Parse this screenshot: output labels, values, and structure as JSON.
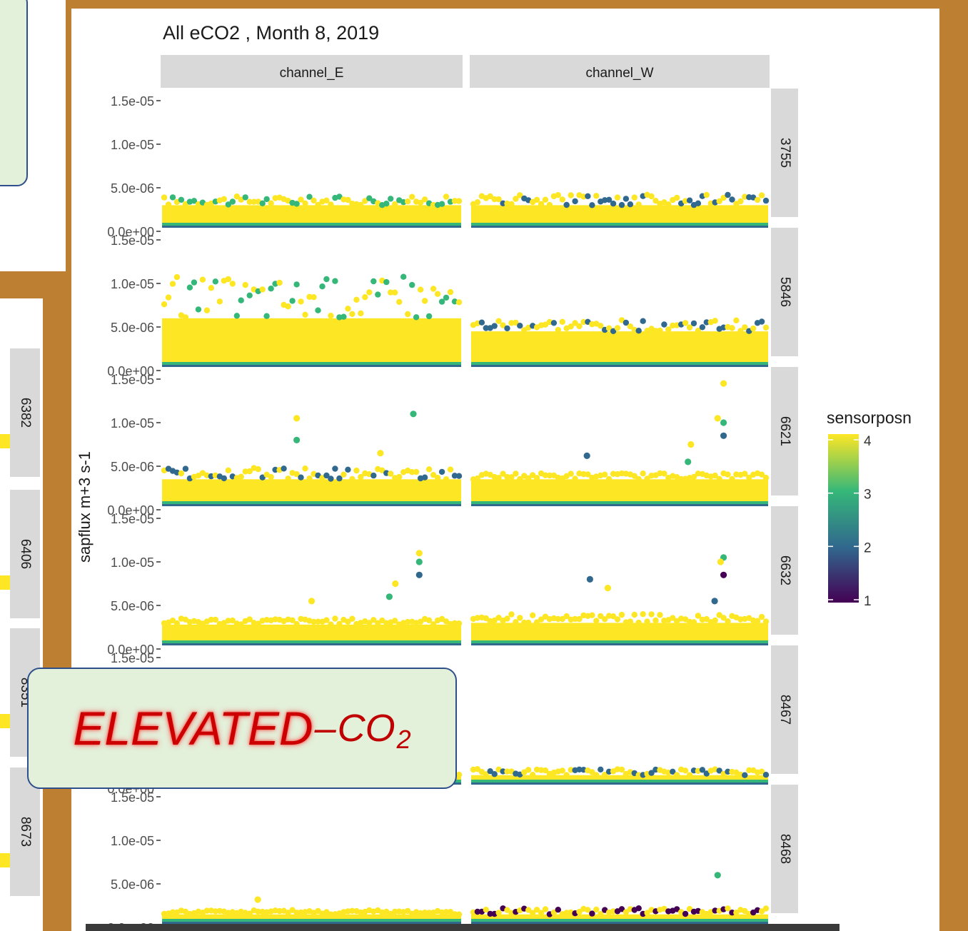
{
  "colors": {
    "background": "#bd7f32",
    "panel_background": "#ffffff",
    "strip_background": "#d9d9d9",
    "viridis_1": "#440154",
    "viridis_2": "#31688e",
    "viridis_3": "#35b779",
    "viridis_4": "#fde725",
    "callout_fill": "#e3f0da",
    "callout_border": "#2f4f8a",
    "callout_text": "#cc0000"
  },
  "callout": {
    "elevated": "ELEVATED",
    "dash": "–",
    "co": "CO",
    "subscript": "2"
  },
  "left_fragment": {
    "strip_labels": [
      "6382",
      "6406",
      "8351",
      "8673"
    ]
  },
  "chart_data": {
    "type": "scatter",
    "title": "All eCO2 , Month 8, 2019",
    "ylabel": "sapflux m+3 s-1",
    "xlabel": "",
    "ylim": [
      0,
      1.5e-05
    ],
    "y_ticks": [
      "0.0e+00",
      "5.0e-06",
      "1.0e-05",
      "1.5e-05"
    ],
    "y_tick_values": [
      0,
      5e-06,
      1e-05,
      1.5e-05
    ],
    "columns": [
      "channel_E",
      "channel_W"
    ],
    "rows": [
      "3755",
      "5846",
      "6621",
      "6632",
      "8467",
      "8468"
    ],
    "legend": {
      "title": "sensorposn",
      "labels": [
        "4",
        "3",
        "2",
        "1"
      ],
      "values": [
        4,
        3,
        2,
        1
      ],
      "position": "right"
    },
    "facets": [
      {
        "row": "3755",
        "column": "channel_E",
        "baseline": 3e-06,
        "top": 4e-06,
        "top_sensor": 3
      },
      {
        "row": "3755",
        "column": "channel_W",
        "baseline": 3e-06,
        "top": 4.2e-06,
        "top_sensor": 2
      },
      {
        "row": "5846",
        "column": "channel_E",
        "baseline": 6e-06,
        "top": 1.08e-05,
        "top_sensor": 3
      },
      {
        "row": "5846",
        "column": "channel_W",
        "baseline": 4.5e-06,
        "top": 5.8e-06,
        "top_sensor": 2
      },
      {
        "row": "6621",
        "column": "channel_E",
        "baseline": 3.5e-06,
        "top": 4.8e-06,
        "top_sensor": 2,
        "outliers": [
          [
            0.45,
            1.05e-05,
            4
          ],
          [
            0.45,
            8e-06,
            3
          ],
          [
            0.84,
            1.1e-05,
            3
          ],
          [
            0.73,
            6.5e-06,
            4
          ]
        ]
      },
      {
        "row": "6621",
        "column": "channel_W",
        "baseline": 3.5e-06,
        "top": 4.2e-06,
        "top_sensor": 4,
        "outliers": [
          [
            0.39,
            6.2e-06,
            2
          ],
          [
            0.85,
            1.45e-05,
            4
          ],
          [
            0.83,
            1.05e-05,
            4
          ],
          [
            0.85,
            1e-05,
            3
          ],
          [
            0.85,
            8.5e-06,
            2
          ],
          [
            0.74,
            7.5e-06,
            4
          ],
          [
            0.73,
            5.5e-06,
            3
          ]
        ]
      },
      {
        "row": "6632",
        "column": "channel_E",
        "baseline": 2.8e-06,
        "top": 3.5e-06,
        "top_sensor": 4,
        "outliers": [
          [
            0.86,
            1.1e-05,
            4
          ],
          [
            0.86,
            1e-05,
            3
          ],
          [
            0.86,
            8.5e-06,
            2
          ],
          [
            0.78,
            7.5e-06,
            4
          ],
          [
            0.76,
            6e-06,
            3
          ],
          [
            0.5,
            5.5e-06,
            4
          ]
        ]
      },
      {
        "row": "6632",
        "column": "channel_W",
        "baseline": 3e-06,
        "top": 4e-06,
        "top_sensor": 4,
        "outliers": [
          [
            0.85,
            1.05e-05,
            3
          ],
          [
            0.84,
            1e-05,
            4
          ],
          [
            0.85,
            8.5e-06,
            1
          ],
          [
            0.4,
            8e-06,
            2
          ],
          [
            0.46,
            7e-06,
            4
          ],
          [
            0.82,
            5.5e-06,
            2
          ]
        ]
      },
      {
        "row": "8467",
        "column": "channel_E",
        "baseline": 1.5e-06,
        "top": 2e-06,
        "top_sensor": 4
      },
      {
        "row": "8467",
        "column": "channel_W",
        "baseline": 1.5e-06,
        "top": 2.2e-06,
        "top_sensor": 2
      },
      {
        "row": "8468",
        "column": "channel_E",
        "baseline": 1.5e-06,
        "top": 2e-06,
        "top_sensor": 4,
        "outliers": [
          [
            0.32,
            3.2e-06,
            4
          ]
        ]
      },
      {
        "row": "8468",
        "column": "channel_W",
        "baseline": 1.5e-06,
        "top": 2.2e-06,
        "top_sensor": 1,
        "outliers": [
          [
            0.83,
            6e-06,
            3
          ]
        ]
      }
    ]
  }
}
